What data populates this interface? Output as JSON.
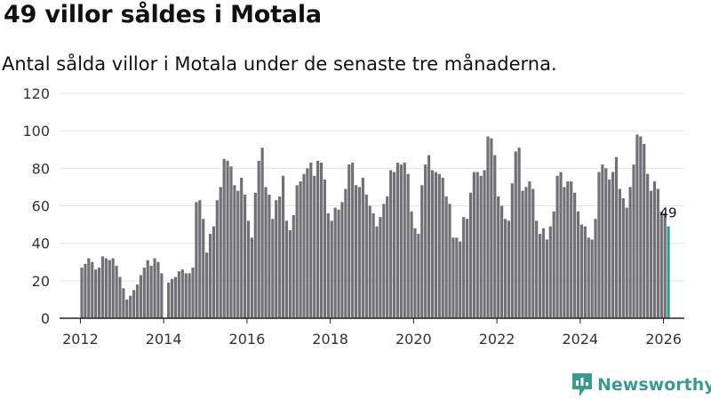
{
  "header": {
    "title": "49 villor såldes i Motala",
    "subtitle": "Antal sålda villor i Motala under de senaste tre månaderna."
  },
  "brand": {
    "name": "Newsworthy",
    "logo_icon": "newsworthy-logo-icon",
    "color": "#3a9a93"
  },
  "chart_data": {
    "type": "bar",
    "title": "49 villor såldes i Motala",
    "subtitle": "Antal sålda villor i Motala under de senaste tre månaderna.",
    "xlabel": "",
    "ylabel": "",
    "ylim": [
      0,
      120
    ],
    "yticks": [
      0,
      20,
      40,
      60,
      80,
      100,
      120
    ],
    "xticks": [
      2012,
      2014,
      2016,
      2018,
      2020,
      2022,
      2024,
      2026
    ],
    "xlim": [
      2011.5,
      2026.5
    ],
    "grid": true,
    "start_year": 2012,
    "start_month": 1,
    "bar_color": "#717074",
    "highlight_color": "#2a9d8f",
    "highlight_label": "49",
    "series": [
      {
        "name": "Antal sålda villor",
        "values": [
          27,
          29,
          32,
          30,
          26,
          27,
          33,
          32,
          31,
          32,
          28,
          22,
          16,
          10,
          12,
          15,
          18,
          23,
          27,
          31,
          28,
          32,
          30,
          24,
          null,
          19,
          21,
          22,
          25,
          26,
          24,
          24,
          27,
          62,
          63,
          53,
          35,
          45,
          49,
          63,
          70,
          85,
          84,
          81,
          71,
          68,
          75,
          66,
          52,
          43,
          67,
          84,
          91,
          70,
          66,
          53,
          63,
          65,
          76,
          52,
          47,
          55,
          71,
          73,
          77,
          80,
          83,
          76,
          84,
          83,
          74,
          56,
          52,
          59,
          58,
          62,
          69,
          82,
          83,
          71,
          70,
          75,
          66,
          60,
          56,
          49,
          54,
          61,
          65,
          79,
          78,
          83,
          82,
          83,
          77,
          57,
          48,
          45,
          71,
          82,
          87,
          79,
          78,
          77,
          75,
          65,
          61,
          43,
          43,
          41,
          54,
          53,
          67,
          78,
          78,
          76,
          79,
          97,
          96,
          87,
          65,
          60,
          53,
          52,
          72,
          89,
          91,
          68,
          70,
          73,
          69,
          52,
          45,
          48,
          42,
          49,
          57,
          76,
          78,
          70,
          73,
          73,
          67,
          57,
          50,
          49,
          43,
          42,
          53,
          78,
          82,
          80,
          74,
          78,
          86,
          69,
          64,
          59,
          70,
          82,
          98,
          97,
          93,
          77,
          68,
          73,
          69,
          57,
          56,
          49
        ]
      }
    ]
  }
}
